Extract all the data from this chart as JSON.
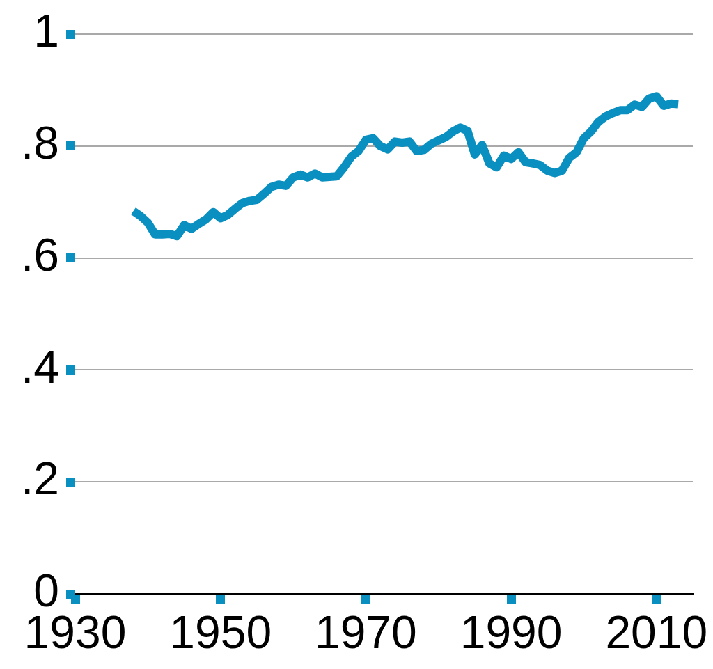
{
  "chart_data": {
    "type": "line",
    "x": [
      1938,
      1939,
      1940,
      1941,
      1942,
      1943,
      1944,
      1945,
      1946,
      1947,
      1948,
      1949,
      1950,
      1951,
      1952,
      1953,
      1954,
      1955,
      1956,
      1957,
      1958,
      1959,
      1960,
      1961,
      1962,
      1963,
      1964,
      1965,
      1966,
      1967,
      1968,
      1969,
      1970,
      1971,
      1972,
      1973,
      1974,
      1975,
      1976,
      1977,
      1978,
      1979,
      1980,
      1981,
      1982,
      1983,
      1984,
      1985,
      1986,
      1987,
      1988,
      1989,
      1990,
      1991,
      1992,
      1993,
      1994,
      1995,
      1996,
      1997,
      1998,
      1999,
      2000,
      2001,
      2002,
      2003,
      2004,
      2005,
      2006,
      2007,
      2008,
      2009,
      2010,
      2011,
      2012,
      2013
    ],
    "series": [
      {
        "color": "#0a8fc1",
        "values": [
          0.684,
          0.675,
          0.663,
          0.642,
          0.642,
          0.643,
          0.639,
          0.659,
          0.652,
          0.661,
          0.669,
          0.682,
          0.671,
          0.677,
          0.688,
          0.698,
          0.702,
          0.704,
          0.715,
          0.727,
          0.731,
          0.729,
          0.744,
          0.749,
          0.744,
          0.751,
          0.744,
          0.745,
          0.746,
          0.762,
          0.781,
          0.791,
          0.811,
          0.814,
          0.8,
          0.794,
          0.808,
          0.806,
          0.808,
          0.791,
          0.793,
          0.804,
          0.81,
          0.816,
          0.826,
          0.833,
          0.827,
          0.785,
          0.802,
          0.769,
          0.762,
          0.783,
          0.777,
          0.789,
          0.771,
          0.769,
          0.766,
          0.756,
          0.752,
          0.756,
          0.779,
          0.789,
          0.814,
          0.826,
          0.843,
          0.853,
          0.859,
          0.864,
          0.864,
          0.874,
          0.87,
          0.885,
          0.889,
          0.872,
          0.876,
          0.875
        ]
      }
    ],
    "xlim": [
      1930,
      2015
    ],
    "xticks": [
      1930,
      1950,
      1970,
      1990,
      2010
    ],
    "ylim": [
      0,
      1
    ],
    "yticks": [
      0,
      {
        "value": 0.2,
        "label": ".2"
      },
      {
        "value": 0.4,
        "label": ".4"
      },
      {
        "value": 0.6,
        "label": ".6"
      },
      {
        "value": 0.8,
        "label": ".8"
      },
      1
    ],
    "grid": "y",
    "line_style": "solid"
  }
}
